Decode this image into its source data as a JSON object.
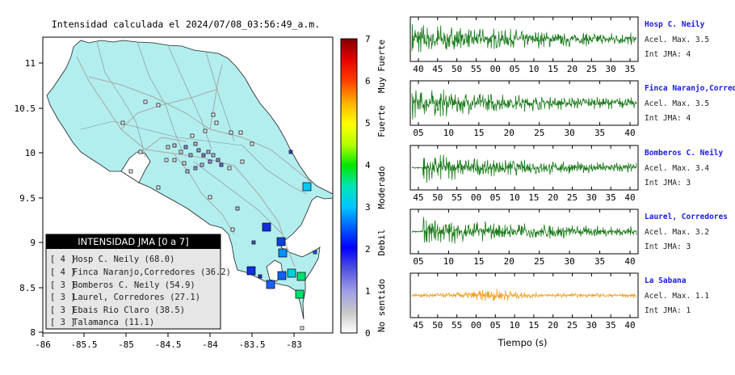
{
  "map": {
    "title": "Intensidad calculada el 2024/07/08_03:56:49_a.m.",
    "lon_ticks": [
      "-86",
      "-85.5",
      "-85",
      "-84.5",
      "-84",
      "-83.5",
      "-83"
    ],
    "lat_ticks": [
      "11",
      "10.5",
      "10",
      "9.5",
      "9",
      "8.5",
      "8"
    ],
    "legend_title": "INTENSIDAD JMA [0 a 7]",
    "legend_items": [
      {
        "level": "[ 4 ]",
        "label": "Hosp C. Neily (68.0)"
      },
      {
        "level": "[ 4 ]",
        "label": "Finca Naranjo,Corredores (36.2)"
      },
      {
        "level": "[ 3 ]",
        "label": "Bomberos C. Neily (54.9)"
      },
      {
        "level": "[ 3 ]",
        "label": "Laurel, Corredores (27.1)"
      },
      {
        "level": "[ 3 ]",
        "label": "Ebais Rio Claro (38.5)"
      },
      {
        "level": "[ 3 ]",
        "label": "Talamanca (11.1)"
      }
    ],
    "colors": {
      "land": "#b2eeee",
      "frame": "#000000"
    }
  },
  "colorbar": {
    "ticks": [
      "7",
      "6",
      "5",
      "4",
      "3",
      "2",
      "1",
      "0"
    ],
    "labels": [
      "Muy Fuerte",
      "Fuerte",
      "Moderado",
      "Debil",
      "No sentido"
    ]
  },
  "traces": [
    {
      "station": "Hosp C. Neily",
      "accel": "Acel. Max. 3.5",
      "jma": "Int JMA: 4",
      "color": "#1a7a1a",
      "ticks": [
        "40",
        "45",
        "50",
        "55",
        "00",
        "05",
        "10",
        "15",
        "20",
        "25",
        "30",
        "35"
      ],
      "onset": 0.0,
      "amp": 1.0
    },
    {
      "station": "Finca Naranjo,Corredores",
      "accel": "Acel. Max. 3.5",
      "jma": "Int JMA: 4",
      "color": "#1a7a1a",
      "ticks": [
        "05",
        "10",
        "15",
        "20",
        "25",
        "30",
        "35",
        "40"
      ],
      "onset": 0.0,
      "amp": 0.9
    },
    {
      "station": "Bomberos C. Neily",
      "accel": "Acel. Max. 3.4",
      "jma": "Int JMA: 3",
      "color": "#1a7a1a",
      "ticks": [
        "45",
        "50",
        "55",
        "00",
        "05",
        "10",
        "15",
        "20",
        "25",
        "30",
        "35",
        "40"
      ],
      "onset": 0.05,
      "amp": 0.8
    },
    {
      "station": "Laurel, Corredores",
      "accel": "Acel. Max. 3.2",
      "jma": "Int JMA: 3",
      "color": "#1a7a1a",
      "ticks": [
        "05",
        "10",
        "15",
        "20",
        "25",
        "30",
        "35",
        "40"
      ],
      "onset": 0.05,
      "amp": 0.8
    },
    {
      "station": "La Sabana",
      "accel": "Acel. Max. 1.1",
      "jma": "Int JMA: 1",
      "color": "#f0a020",
      "ticks": [
        "45",
        "50",
        "55",
        "00",
        "05",
        "10",
        "15",
        "20",
        "25",
        "30",
        "35",
        "40"
      ],
      "onset": 0.0,
      "amp": 0.7
    }
  ],
  "xlabel": "Tiempo (s)"
}
